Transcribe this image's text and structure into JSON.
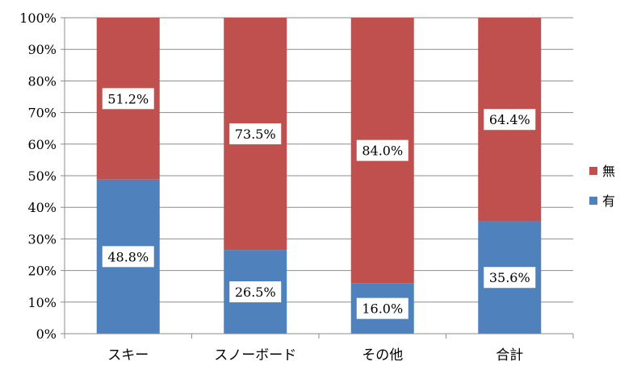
{
  "chart_data": {
    "type": "bar",
    "stacked": true,
    "categories": [
      "スキー",
      "スノーボード",
      "その他",
      "合計"
    ],
    "series": [
      {
        "name": "有",
        "values": [
          48.8,
          26.5,
          16.0,
          35.6
        ],
        "labels": [
          "48.8%",
          "26.5%",
          "16.0%",
          "35.6%"
        ],
        "color": "#4F81BD"
      },
      {
        "name": "無",
        "values": [
          51.2,
          73.5,
          84.0,
          64.4
        ],
        "labels": [
          "51.2%",
          "73.5%",
          "84.0%",
          "64.4%"
        ],
        "color": "#C0504D"
      }
    ],
    "ylim": [
      0,
      100
    ],
    "yticks": [
      "0%",
      "10%",
      "20%",
      "30%",
      "40%",
      "50%",
      "60%",
      "70%",
      "80%",
      "90%",
      "100%"
    ],
    "grid": true,
    "legend": {
      "placement": "right",
      "order": [
        "無",
        "有"
      ]
    },
    "title": "",
    "xlabel": "",
    "ylabel": ""
  }
}
